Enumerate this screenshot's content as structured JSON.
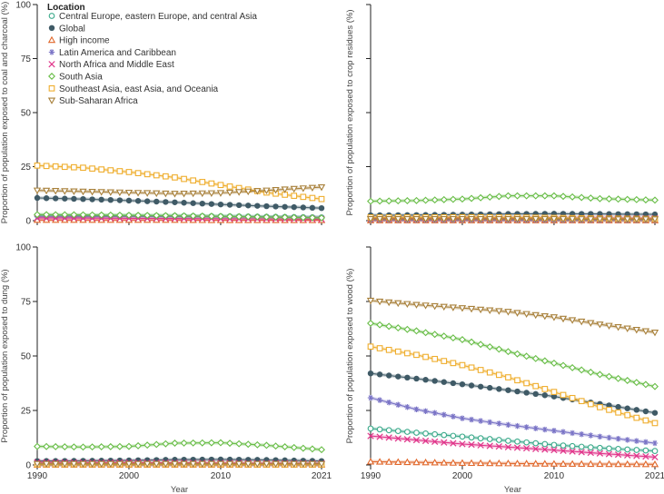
{
  "chart_data": [
    {
      "type": "line",
      "ylabel": "Proportion of population exposed to coal and charcoal (%)",
      "xlabel": "",
      "xlim": [
        1990,
        2021
      ],
      "ylim": [
        0,
        100
      ],
      "yticks": [
        "0",
        "25",
        "50",
        "75",
        "100"
      ],
      "xticks": [],
      "years": [
        1990,
        1995,
        2000,
        2005,
        2010,
        2015,
        2021
      ],
      "series": [
        {
          "key": "ce",
          "values": [
            2.5,
            2.4,
            2.3,
            2.2,
            2.0,
            1.8,
            1.5
          ]
        },
        {
          "key": "global",
          "values": [
            10.5,
            10.0,
            9.3,
            8.5,
            7.5,
            6.7,
            5.8
          ]
        },
        {
          "key": "high",
          "values": [
            0.3,
            0.3,
            0.3,
            0.3,
            0.2,
            0.2,
            0.2
          ]
        },
        {
          "key": "latin",
          "values": [
            1.8,
            1.8,
            1.9,
            1.9,
            1.8,
            1.6,
            1.5
          ]
        },
        {
          "key": "name",
          "values": [
            1.3,
            1.2,
            1.1,
            1.0,
            0.9,
            0.8,
            0.7
          ]
        },
        {
          "key": "sa",
          "values": [
            2.8,
            2.7,
            2.5,
            2.3,
            2.0,
            1.7,
            1.3
          ]
        },
        {
          "key": "se",
          "values": [
            25.5,
            24.5,
            22.5,
            20.0,
            16.5,
            13.0,
            10.0
          ]
        },
        {
          "key": "ssa",
          "values": [
            14.0,
            13.5,
            13.0,
            12.5,
            12.8,
            14.0,
            15.5
          ]
        }
      ]
    },
    {
      "type": "line",
      "ylabel": "Proportion of population exposed to crop residues (%)",
      "xlabel": "",
      "xlim": [
        1990,
        2021
      ],
      "ylim": [
        0,
        100
      ],
      "yticks": [],
      "xticks": [],
      "years": [
        1990,
        1995,
        2000,
        2005,
        2010,
        2015,
        2021
      ],
      "series": [
        {
          "key": "ce",
          "values": [
            0.5,
            0.5,
            0.5,
            0.5,
            0.4,
            0.4,
            0.3
          ]
        },
        {
          "key": "global",
          "values": [
            2.5,
            2.6,
            2.8,
            3.1,
            3.2,
            3.1,
            2.9
          ]
        },
        {
          "key": "high",
          "values": [
            0.1,
            0.1,
            0.1,
            0.1,
            0.1,
            0.1,
            0.1
          ]
        },
        {
          "key": "latin",
          "values": [
            0.3,
            0.3,
            0.3,
            0.3,
            0.3,
            0.2,
            0.2
          ]
        },
        {
          "key": "name",
          "values": [
            1.2,
            1.2,
            1.3,
            1.3,
            1.3,
            1.2,
            1.1
          ]
        },
        {
          "key": "sa",
          "values": [
            9.0,
            9.3,
            10.0,
            11.5,
            11.5,
            10.2,
            9.5
          ]
        },
        {
          "key": "se",
          "values": [
            1.5,
            1.5,
            1.6,
            1.5,
            1.3,
            1.0,
            0.8
          ]
        },
        {
          "key": "ssa",
          "values": [
            0.8,
            0.8,
            0.8,
            0.8,
            0.8,
            0.7,
            0.7
          ]
        }
      ]
    },
    {
      "type": "line",
      "ylabel": "Proportion of population exposed to dung (%)",
      "xlabel": "Year",
      "xlim": [
        1990,
        2021
      ],
      "ylim": [
        0,
        100
      ],
      "yticks": [
        "0",
        "25",
        "50",
        "75",
        "100"
      ],
      "xticks": [
        "1990",
        "2000",
        "2010",
        "2021"
      ],
      "years": [
        1990,
        1995,
        2000,
        2005,
        2010,
        2015,
        2021
      ],
      "series": [
        {
          "key": "ce",
          "values": [
            0.2,
            0.2,
            0.2,
            0.2,
            0.2,
            0.2,
            0.1
          ]
        },
        {
          "key": "global",
          "values": [
            1.8,
            1.9,
            2.1,
            2.4,
            2.5,
            2.3,
            1.8
          ]
        },
        {
          "key": "high",
          "values": [
            0.05,
            0.05,
            0.05,
            0.05,
            0.05,
            0.05,
            0.05
          ]
        },
        {
          "key": "latin",
          "values": [
            0.2,
            0.2,
            0.2,
            0.2,
            0.2,
            0.2,
            0.2
          ]
        },
        {
          "key": "name",
          "values": [
            1.2,
            1.1,
            1.1,
            1.0,
            0.9,
            0.8,
            0.7
          ]
        },
        {
          "key": "sa",
          "values": [
            8.5,
            8.2,
            8.5,
            10.0,
            10.2,
            9.0,
            7.0
          ]
        },
        {
          "key": "se",
          "values": [
            0.3,
            0.3,
            0.3,
            0.3,
            0.3,
            0.2,
            0.2
          ]
        },
        {
          "key": "ssa",
          "values": [
            0.5,
            0.5,
            0.5,
            0.5,
            0.5,
            0.5,
            0.5
          ]
        }
      ]
    },
    {
      "type": "line",
      "ylabel": "Proportion of population exposed to wood (%)",
      "xlabel": "Year",
      "xlim": [
        1990,
        2021
      ],
      "ylim": [
        0,
        100
      ],
      "yticks": [],
      "xticks": [
        "1990",
        "2000",
        "2010",
        "2021"
      ],
      "years": [
        1990,
        1995,
        2000,
        2005,
        2010,
        2015,
        2021
      ],
      "series": [
        {
          "key": "ce",
          "values": [
            16.7,
            14.8,
            13.0,
            11.1,
            9.2,
            7.8,
            6.4
          ]
        },
        {
          "key": "global",
          "values": [
            42.0,
            39.6,
            37.0,
            34.3,
            31.4,
            28.0,
            23.9
          ]
        },
        {
          "key": "high",
          "values": [
            1.5,
            1.2,
            0.9,
            0.7,
            0.5,
            0.4,
            0.3
          ]
        },
        {
          "key": "latin",
          "values": [
            30.8,
            25.5,
            21.4,
            18.4,
            15.7,
            13.0,
            10.0
          ]
        },
        {
          "key": "name",
          "values": [
            13.3,
            11.4,
            9.6,
            8.2,
            6.8,
            5.3,
            3.6
          ]
        },
        {
          "key": "sa",
          "values": [
            65.0,
            61.5,
            57.5,
            52.0,
            46.7,
            41.5,
            36.0
          ]
        },
        {
          "key": "se",
          "values": [
            54.3,
            50.5,
            45.8,
            40.2,
            33.5,
            26.5,
            19.2
          ]
        },
        {
          "key": "ssa",
          "values": [
            75.4,
            73.5,
            72.0,
            70.3,
            67.8,
            64.5,
            60.8
          ]
        }
      ]
    }
  ],
  "legend": {
    "title": "Location",
    "placement": "top-left",
    "items": [
      {
        "key": "ce",
        "label": "Central Europe, eastern Europe, and central Asia",
        "color": "#3aa98a",
        "marker": "open-circle"
      },
      {
        "key": "global",
        "label": "Global",
        "color": "#3f5a66",
        "marker": "filled-circle"
      },
      {
        "key": "high",
        "label": "High income",
        "color": "#e0672a",
        "marker": "triangle-up"
      },
      {
        "key": "latin",
        "label": "Latin America and Caribbean",
        "color": "#7a74c6",
        "marker": "asterisk"
      },
      {
        "key": "name",
        "label": "North Africa and Middle East",
        "color": "#e0358a",
        "marker": "x"
      },
      {
        "key": "sa",
        "label": "South Asia",
        "color": "#68bd47",
        "marker": "diamond"
      },
      {
        "key": "se",
        "label": "Southeast Asia, east Asia, and Oceania",
        "color": "#efae2e",
        "marker": "square"
      },
      {
        "key": "ssa",
        "label": "Sub-Saharan Africa",
        "color": "#a8803a",
        "marker": "triangle-down"
      }
    ]
  }
}
